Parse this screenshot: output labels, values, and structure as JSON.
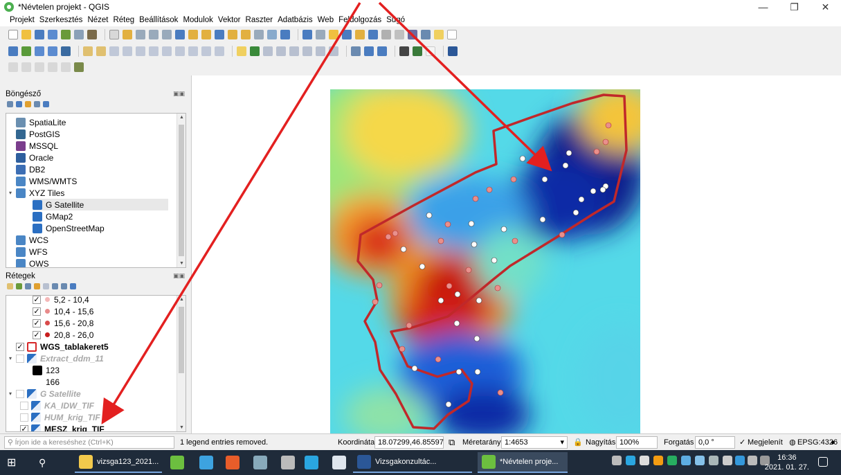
{
  "window": {
    "title": "*Névtelen projekt - QGIS",
    "controls": [
      "—",
      "❐",
      "✕"
    ]
  },
  "menu": [
    "Projekt",
    "Szerkesztés",
    "Nézet",
    "Réteg",
    "Beállítások",
    "Modulok",
    "Vektor",
    "Raszter",
    "Adatbázis",
    "Web",
    "Feldolgozás",
    "Súgó"
  ],
  "browser": {
    "title": "Böngésző",
    "items": [
      {
        "label": "SpatiaLite",
        "icon": "spatialite-icon",
        "color": "#6a8fb0"
      },
      {
        "label": "PostGIS",
        "icon": "postgis-icon",
        "color": "#336791"
      },
      {
        "label": "MSSQL",
        "icon": "mssql-icon",
        "color": "#7a3d8c"
      },
      {
        "label": "Oracle",
        "icon": "oracle-icon",
        "color": "#2e5f9e"
      },
      {
        "label": "DB2",
        "icon": "db2-icon",
        "color": "#3c6eb4"
      },
      {
        "label": "WMS/WMTS",
        "icon": "wms-icon",
        "color": "#4a86c5"
      },
      {
        "label": "XYZ Tiles",
        "icon": "xyz-tiles-icon",
        "color": "#4a86c5",
        "expanded": true
      },
      {
        "label": "G Satellite",
        "icon": "tile-layer-icon",
        "color": "#2b6fc2",
        "child": true,
        "selected": true
      },
      {
        "label": "GMap2",
        "icon": "tile-layer-icon",
        "color": "#2b6fc2",
        "child": true
      },
      {
        "label": "OpenStreetMap",
        "icon": "tile-layer-icon",
        "color": "#2b6fc2",
        "child": true
      },
      {
        "label": "WCS",
        "icon": "wcs-icon",
        "color": "#4a86c5"
      },
      {
        "label": "WFS",
        "icon": "wfs-icon",
        "color": "#4a86c5"
      },
      {
        "label": "OWS",
        "icon": "ows-icon",
        "color": "#4a86c5"
      }
    ]
  },
  "layers": {
    "title": "Rétegek",
    "items": [
      {
        "label": "5,2 - 10,4",
        "type": "class",
        "checked": true,
        "dot": "#f4b8b8"
      },
      {
        "label": "10,4 - 15,6",
        "type": "class",
        "checked": true,
        "dot": "#e88a8a"
      },
      {
        "label": "15,6 - 20,8",
        "type": "class",
        "checked": true,
        "dot": "#d94a4a"
      },
      {
        "label": "20,8 - 26,0",
        "type": "class",
        "checked": true,
        "dot": "#c81e1e"
      },
      {
        "label": "WGS_tablakeret5",
        "type": "layer-bold",
        "checked": true,
        "swatch": "#d62728"
      },
      {
        "label": "Extract_ddm_11",
        "type": "layer-dim",
        "checked": false,
        "expanded": true
      },
      {
        "label": "123",
        "type": "legend",
        "swatch": "#000000"
      },
      {
        "label": "166",
        "type": "legend"
      },
      {
        "label": "G Satellite",
        "type": "layer-dim",
        "checked": false,
        "expanded": true
      },
      {
        "label": "KA_IDW_TIF",
        "type": "layer-dim",
        "checked": false
      },
      {
        "label": "HUM_krig_TIF",
        "type": "layer-dim",
        "checked": false
      },
      {
        "label": "MESZ_krig_TIF",
        "type": "layer-bold",
        "checked": true
      }
    ]
  },
  "status": {
    "search_placeholder": "Írjon ide a kereséshez (Ctrl+K)",
    "message": "1 legend entries removed.",
    "coord_label": "Koordináta",
    "coord_value": "18.07299,46.85597",
    "scale_label": "Méretarány",
    "scale_value": "1:4653",
    "zoom_label": "Nagyítás",
    "zoom_value": "100%",
    "rotation_label": "Forgatás",
    "rotation_value": "0,0 °",
    "render_label": "Megjelenít",
    "crs": "EPSG:4326"
  },
  "taskbar": {
    "items": [
      {
        "label": "vizsga123_2021...",
        "icon": "folder-icon",
        "color": "#f2c94c"
      },
      {
        "label": "",
        "icon": "qgis-icon",
        "color": "#6cbf3f"
      },
      {
        "label": "",
        "icon": "app-icon",
        "color": "#3da3e0"
      },
      {
        "label": "",
        "icon": "app-icon",
        "color": "#e85d2a"
      },
      {
        "label": "",
        "icon": "app-icon",
        "color": "#8ab"
      },
      {
        "label": "",
        "icon": "usb-icon",
        "color": "#bbb"
      },
      {
        "label": "",
        "icon": "edge-icon",
        "color": "#2aa6e0"
      },
      {
        "label": "",
        "icon": "app-icon",
        "color": "#dfe6ee"
      },
      {
        "label": "Vizsgakonzultác...",
        "icon": "word-icon",
        "color": "#2b5797"
      },
      {
        "label": "*Névtelen proje...",
        "icon": "qgis-icon",
        "color": "#6cbf3f"
      }
    ],
    "time": "16:36",
    "date": "2021. 01. 27."
  },
  "colors": {
    "accent_red": "#e32020",
    "boundary": "#c0282a",
    "taskbar": "#1f2b3a"
  }
}
